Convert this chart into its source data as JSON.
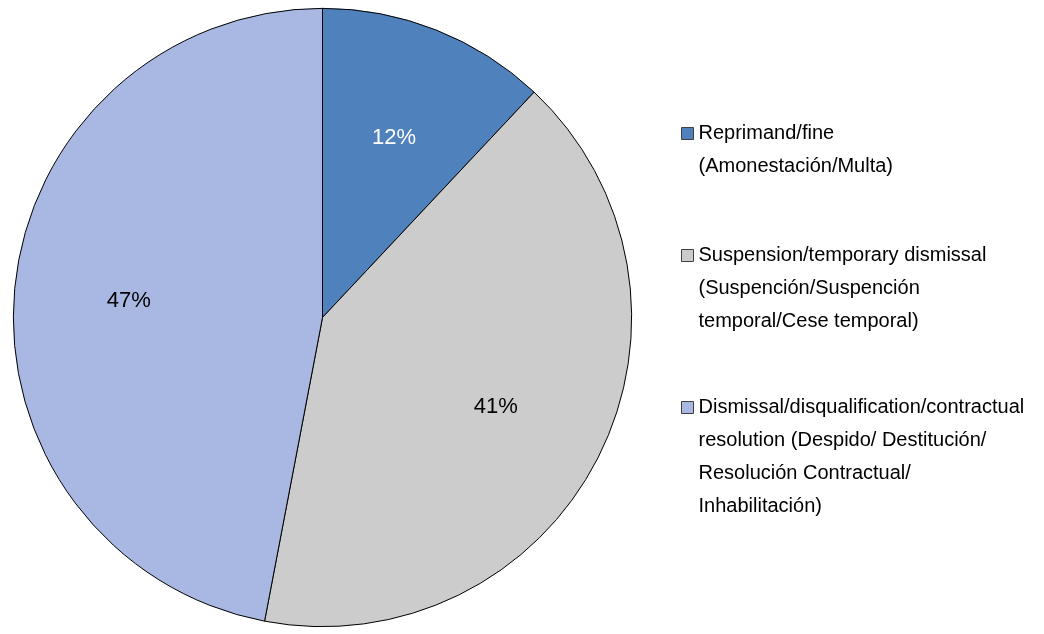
{
  "chart_data": {
    "type": "pie",
    "categories": [
      "Reprimand/fine (Amonestación/Multa)",
      "Suspension/temporary dismissal (Suspención/Suspención temporal/Cese temporal)",
      "Dismissal/disqualification/contractual resolution (Despido/ Destitución/ Resolución Contractual/ Inhabilitación)"
    ],
    "values": [
      12,
      41,
      47
    ],
    "colors": [
      "#4f81bd",
      "#cccccc",
      "#a9b8e2"
    ],
    "value_labels": [
      "12%",
      "41%",
      "47%"
    ],
    "legend": "right"
  }
}
